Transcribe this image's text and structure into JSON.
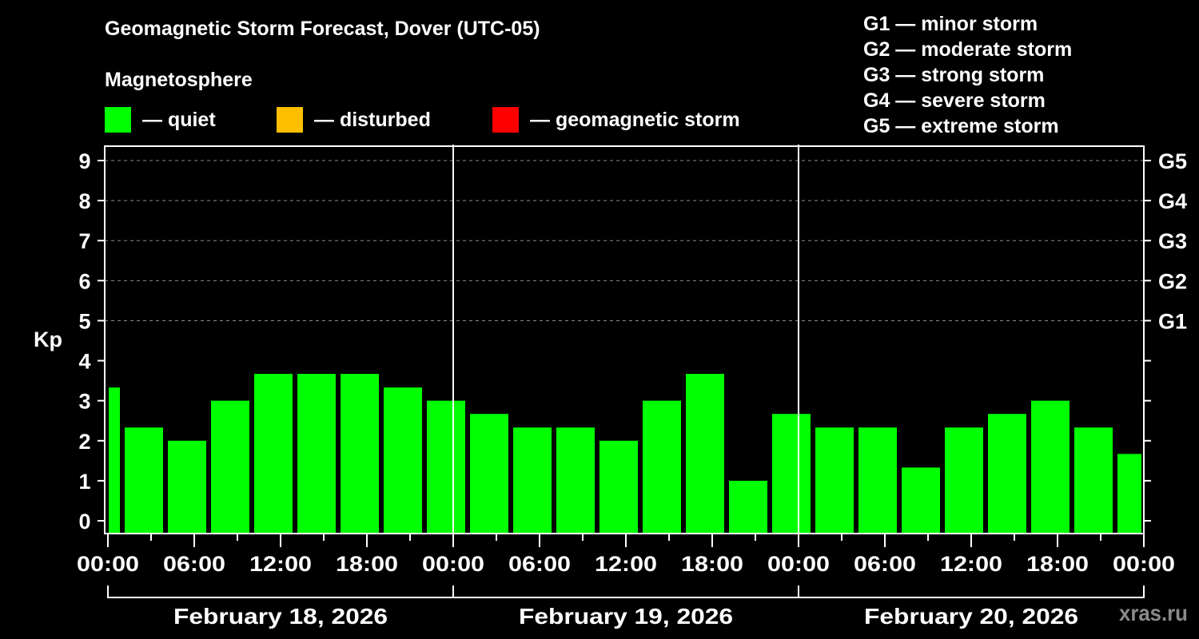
{
  "title": "Geomagnetic Storm Forecast, Dover (UTC-05)",
  "subtitle": "Magnetosphere",
  "legend": [
    {
      "label": "— quiet",
      "color": "#00ff00"
    },
    {
      "label": "— disturbed",
      "color": "#ffbf00"
    },
    {
      "label": "— geomagnetic storm",
      "color": "#ff0000"
    }
  ],
  "g_scale_legend": [
    "G1 — minor storm",
    "G2 — moderate storm",
    "G3 — strong storm",
    "G4 — severe storm",
    "G5 — extreme storm"
  ],
  "y_axis_label": "Kp",
  "brand": "xras.ru",
  "chart_data": {
    "type": "bar",
    "title": "Geomagnetic Storm Forecast, Dover (UTC-05)",
    "xlabel": "",
    "ylabel": "Kp",
    "ylim": [
      0,
      9
    ],
    "yticks": [
      0,
      1,
      2,
      3,
      4,
      5,
      6,
      7,
      8,
      9
    ],
    "right_axis_ticks": [
      {
        "kp": 5,
        "label": "G1"
      },
      {
        "kp": 6,
        "label": "G2"
      },
      {
        "kp": 7,
        "label": "G3"
      },
      {
        "kp": 8,
        "label": "G4"
      },
      {
        "kp": 9,
        "label": "G5"
      }
    ],
    "grid": {
      "horizontal_dashed_at": [
        5,
        6,
        7,
        8,
        9
      ]
    },
    "x_tick_labels": [
      "00:00",
      "06:00",
      "12:00",
      "18:00",
      "00:00",
      "06:00",
      "12:00",
      "18:00",
      "00:00",
      "06:00",
      "12:00",
      "18:00",
      "00:00"
    ],
    "day_labels": [
      "February 18, 2026",
      "February 19, 2026",
      "February 20, 2026"
    ],
    "interval_hours": 3,
    "series": [
      {
        "name": "Kp",
        "color": "#00ff00",
        "values": [
          3.33,
          2.33,
          2.0,
          3.0,
          3.67,
          3.67,
          3.67,
          3.33,
          3.0,
          2.67,
          2.33,
          2.33,
          2.0,
          3.0,
          3.67,
          1.0,
          2.67,
          2.33,
          2.33,
          1.33,
          2.33,
          2.67,
          3.0,
          2.33,
          1.67
        ]
      }
    ],
    "legend_position": "top"
  }
}
